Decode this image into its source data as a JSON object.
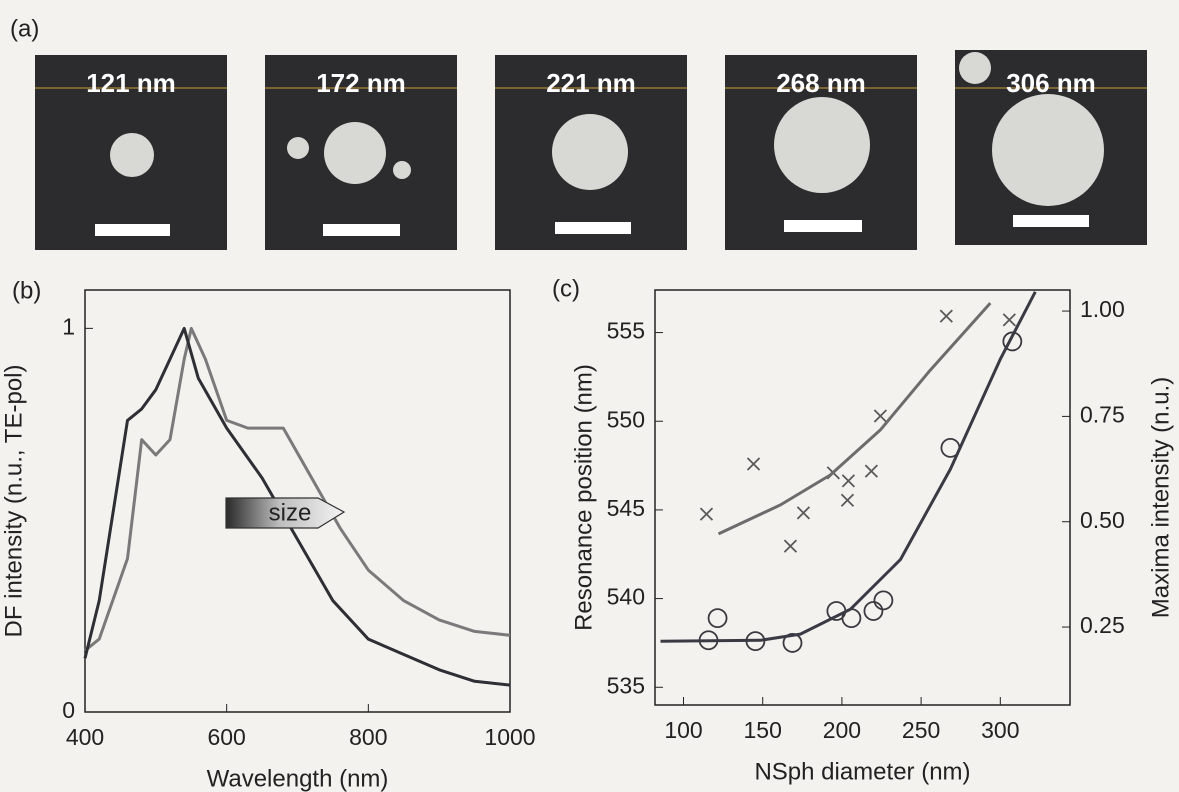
{
  "images": {
    "label": "(a)",
    "items": [
      "121 nm",
      "172 nm",
      "221 nm",
      "268 nm",
      "306 nm"
    ]
  },
  "chart_data": [
    {
      "type": "line",
      "label": "(b)",
      "xlabel": "Wavelength (nm)",
      "ylabel": "DF intensity (n.u., TE-pol)",
      "annotation": "size",
      "xlim": [
        400,
        1000
      ],
      "ylim": [
        0,
        1.1
      ],
      "xticks": [
        400,
        600,
        800,
        1000
      ],
      "yticks": [
        0,
        1
      ],
      "series": [
        {
          "color": "#7a7a7a",
          "x": [
            400,
            420,
            460,
            480,
            500,
            520,
            540,
            550,
            570,
            600,
            630,
            680,
            720,
            760,
            800,
            850,
            900,
            950,
            1000
          ],
          "values": [
            0.16,
            0.19,
            0.4,
            0.71,
            0.67,
            0.71,
            0.92,
            1.0,
            0.92,
            0.76,
            0.74,
            0.74,
            0.61,
            0.48,
            0.37,
            0.29,
            0.24,
            0.21,
            0.2
          ]
        },
        {
          "color": "#2e2e35",
          "x": [
            400,
            420,
            460,
            480,
            500,
            520,
            540,
            560,
            600,
            650,
            700,
            750,
            800,
            850,
            900,
            950,
            1000
          ],
          "values": [
            0.14,
            0.29,
            0.76,
            0.79,
            0.84,
            0.92,
            1.0,
            0.87,
            0.74,
            0.61,
            0.45,
            0.29,
            0.19,
            0.15,
            0.11,
            0.08,
            0.07
          ]
        }
      ]
    },
    {
      "type": "scatter",
      "label": "(c)",
      "xlabel": "NSph diameter (nm)",
      "ylabel": "Resonance position (nm)",
      "y2label": "Maxima intensity (n.u.)",
      "xlim": [
        82,
        344
      ],
      "ylim": [
        534,
        557.4
      ],
      "y2lim": [
        0.065,
        1.05
      ],
      "xticks": [
        100,
        150,
        200,
        250,
        300
      ],
      "yticks": [
        535,
        540,
        545,
        550,
        555
      ],
      "y2ticks": [
        0.25,
        {
          "value": 0.5,
          "label": "0.50"
        },
        0.75,
        {
          "value": 1,
          "label": "1.00"
        }
      ],
      "series": [
        {
          "marker": "circle",
          "color": "#3a3a40",
          "x": [
            115.8,
            121.5,
            145.4,
            168.8,
            196.5,
            206,
            219.9,
            226.2,
            268.5,
            307.6
          ],
          "values": [
            537.65,
            538.9,
            537.6,
            537.5,
            539.3,
            538.9,
            539.3,
            539.9,
            548.5,
            554.5
          ]
        },
        {
          "marker": "cross",
          "color": "#5a5a5a",
          "axis": "y2",
          "x": [
            114.5,
            144.2,
            167.5,
            175.7,
            194.6,
            203.5,
            204.1,
            218.6,
            224.3,
            265.9,
            305.7
          ],
          "values": [
            0.518,
            0.637,
            0.442,
            0.521,
            0.616,
            0.551,
            0.597,
            0.62,
            0.751,
            0.988,
            0.979
          ]
        },
        {
          "marker": "line",
          "color": "#3a3a45",
          "x": [
            85.5,
            148.6,
            173.8,
            205.4,
            236.9,
            268.5,
            300,
            322.1
          ],
          "values": [
            537.6,
            537.65,
            538.0,
            539.4,
            542.2,
            547.3,
            553.5,
            557.3
          ]
        },
        {
          "marker": "line",
          "color": "#6c6c6c",
          "axis": "y2",
          "x": [
            122.1,
            161.2,
            192.7,
            224.3,
            255.8,
            293.7
          ],
          "values": [
            0.471,
            0.54,
            0.611,
            0.718,
            0.86,
            1.019
          ]
        }
      ]
    }
  ]
}
